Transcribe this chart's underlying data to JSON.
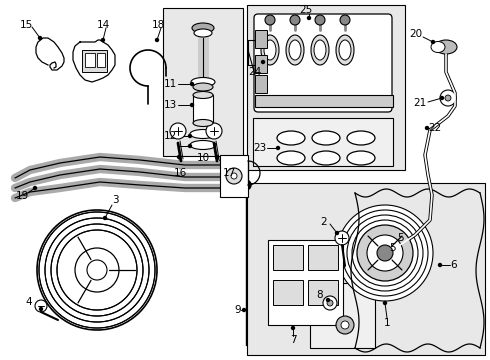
{
  "bg_color": "#ffffff",
  "fig_width": 4.9,
  "fig_height": 3.6,
  "dpi": 100,
  "label_fontsize": 7.5,
  "line_color": "#000000",
  "label_color": "#000000",
  "box_color": "#e8e8e8"
}
